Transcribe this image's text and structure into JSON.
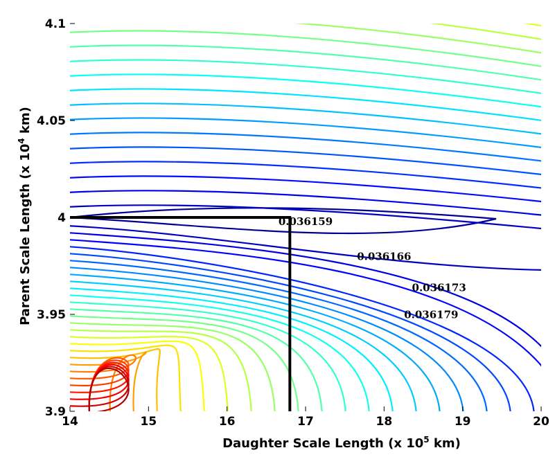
{
  "chart_data": {
    "type": "contour",
    "title": "",
    "xlabel": "Daughter Scale Length (x 10^5 km)",
    "ylabel": "Parent Scale Length (x 10^4 km)",
    "xlim": [
      14,
      20
    ],
    "ylim": [
      3.9,
      4.1
    ],
    "x_ticks": [
      14,
      15,
      16,
      17,
      18,
      19,
      20
    ],
    "y_ticks": [
      3.9,
      3.95,
      4.0,
      4.05,
      4.1
    ],
    "x_tick_labels": [
      "14",
      "15",
      "16",
      "17",
      "18",
      "19",
      "20"
    ],
    "y_tick_labels": [
      "3.9",
      "3.95",
      "4",
      "4.05",
      "4.1"
    ],
    "grid": false,
    "colormap": "jet",
    "minimum": {
      "x": 14.0,
      "y": 4.0
    },
    "best_fit_marker": {
      "x": 16.8,
      "y": 4.0
    },
    "contour_labels": [
      {
        "text": "0.036159",
        "x": 17.0,
        "y": 3.996
      },
      {
        "text": "0.036166",
        "x": 18.0,
        "y": 3.978
      },
      {
        "text": "0.036173",
        "x": 18.7,
        "y": 3.962
      },
      {
        "text": "0.036179",
        "x": 18.6,
        "y": 3.948
      }
    ],
    "upper_levels": 26,
    "lower_levels": 28
  }
}
